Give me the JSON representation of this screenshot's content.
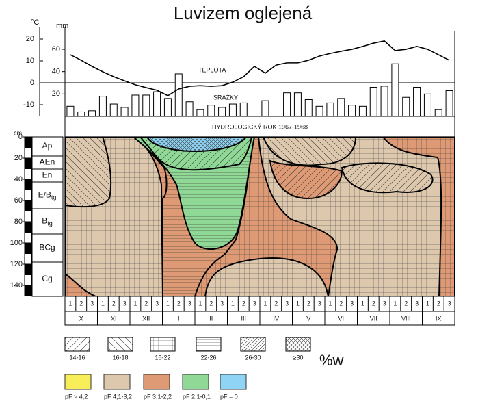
{
  "title": "Luvizem oglejená",
  "climate": {
    "temp_unit": "°C",
    "temp_ticks": [
      20,
      10,
      0,
      -10
    ],
    "precip_unit": "mm",
    "precip_ticks": [
      60,
      40,
      20
    ],
    "temp_label": "TEPLOTA",
    "precip_label": "SRÁŽKY",
    "temperature": [
      12.8,
      10.3,
      7.5,
      5.0,
      2.8,
      0.9,
      -0.9,
      -2.2,
      -3.4,
      -5.9,
      -2.8,
      -1.6,
      -1.3,
      -1.6,
      -1.3,
      0.3,
      2.8,
      7.5,
      4.4,
      8.1,
      9.1,
      9.1,
      10.3,
      12.2,
      13.4,
      14.4,
      15.3,
      16.6,
      18.1,
      19.1,
      14.7,
      15.3,
      16.6,
      15.3,
      12.8,
      10.3
    ],
    "precipitation": [
      9,
      4,
      5,
      18,
      11,
      8,
      19,
      19,
      22,
      16,
      38,
      13,
      6,
      10,
      8,
      11,
      12,
      null,
      14,
      null,
      21,
      21,
      15,
      9,
      12,
      16,
      10,
      9,
      26,
      27,
      47,
      17,
      26,
      20,
      6,
      23
    ]
  },
  "hydro_year": "HYDROLOGICKÝ ROK 1967-1968",
  "depth": {
    "unit": "cm",
    "ticks": [
      0,
      20,
      40,
      60,
      80,
      100,
      120,
      140
    ]
  },
  "horizons": [
    {
      "main": "Ap"
    },
    {
      "main": "AEn"
    },
    {
      "main": "En"
    },
    {
      "main": "E/B",
      "sub": "tg"
    },
    {
      "main": "B",
      "sub": "tg"
    },
    {
      "main": "BCg"
    },
    {
      "main": "Cg"
    }
  ],
  "decades": [
    1,
    2,
    3
  ],
  "months": [
    "X",
    "XI",
    "XII",
    "I",
    "II",
    "III",
    "IV",
    "V",
    "VI",
    "VII",
    "VIII",
    "IX"
  ],
  "legend_moisture": {
    "labels": [
      "14-16",
      "16-18",
      "18-22",
      "22-26",
      "26-30",
      "≥30"
    ],
    "unit": "%w"
  },
  "legend_pf": {
    "labels": [
      "pF > 4,2",
      "pF 4,1-3,2",
      "pF 3,1-2,2",
      "pF 2,1-0,1",
      "pF = 0"
    ],
    "colors": [
      "#f7ee5a",
      "#ddc8ae",
      "#dd9a74",
      "#8fd896",
      "#8fd4f4"
    ]
  }
}
